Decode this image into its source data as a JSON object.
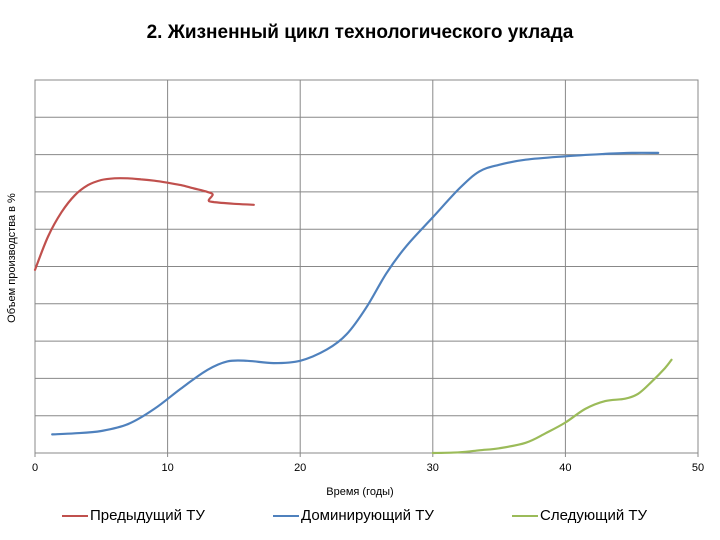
{
  "chart_data": {
    "type": "line",
    "title": "2. Жизненный цикл технологического уклада",
    "xlabel": "Время (годы)",
    "ylabel": "Объем производства в %",
    "xlim": [
      0,
      50
    ],
    "ylim": [
      0,
      11
    ],
    "x_ticks": [
      "0",
      "10",
      "20",
      "30",
      "40",
      "50"
    ],
    "grid": true,
    "legend_position": "bottom",
    "series": [
      {
        "name": "Предыдущий ТУ",
        "color": "#c0504d",
        "points": [
          [
            0,
            5.4
          ],
          [
            1,
            6.4
          ],
          [
            2,
            7.1
          ],
          [
            3,
            7.6
          ],
          [
            4,
            7.9
          ],
          [
            5,
            8.05
          ],
          [
            6,
            8.1
          ],
          [
            7,
            8.1
          ],
          [
            8,
            8.07
          ],
          [
            9,
            8.03
          ],
          [
            10,
            7.97
          ],
          [
            11,
            7.9
          ],
          [
            12,
            7.8
          ],
          [
            13,
            7.7
          ],
          [
            13.4,
            7.62
          ],
          [
            13.1,
            7.45
          ],
          [
            13.5,
            7.4
          ],
          [
            15,
            7.35
          ],
          [
            16.5,
            7.32
          ]
        ]
      },
      {
        "name": "Доминирующий ТУ",
        "color": "#4f81bd",
        "points": [
          [
            1.3,
            0.55
          ],
          [
            3,
            0.58
          ],
          [
            5,
            0.65
          ],
          [
            7,
            0.85
          ],
          [
            9,
            1.3
          ],
          [
            11,
            1.9
          ],
          [
            13,
            2.45
          ],
          [
            14.5,
            2.7
          ],
          [
            16,
            2.72
          ],
          [
            18,
            2.65
          ],
          [
            20,
            2.72
          ],
          [
            22,
            3.05
          ],
          [
            23.5,
            3.5
          ],
          [
            25,
            4.3
          ],
          [
            26.5,
            5.3
          ],
          [
            28,
            6.1
          ],
          [
            30,
            6.95
          ],
          [
            32,
            7.8
          ],
          [
            33.5,
            8.3
          ],
          [
            35,
            8.5
          ],
          [
            37,
            8.65
          ],
          [
            40,
            8.75
          ],
          [
            43,
            8.82
          ],
          [
            45,
            8.85
          ],
          [
            47,
            8.85
          ]
        ]
      },
      {
        "name": "Следующий ТУ",
        "color": "#9bbb59",
        "points": [
          [
            30,
            0
          ],
          [
            32,
            0.02
          ],
          [
            33.5,
            0.08
          ],
          [
            35,
            0.14
          ],
          [
            37,
            0.3
          ],
          [
            38.5,
            0.58
          ],
          [
            40,
            0.9
          ],
          [
            41.5,
            1.3
          ],
          [
            43,
            1.53
          ],
          [
            44.5,
            1.6
          ],
          [
            45.5,
            1.75
          ],
          [
            46.5,
            2.1
          ],
          [
            47.5,
            2.5
          ],
          [
            48,
            2.75
          ]
        ]
      }
    ]
  }
}
